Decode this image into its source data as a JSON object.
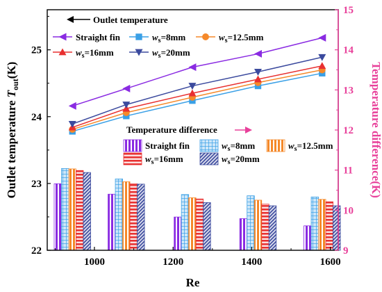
{
  "chart_data": {
    "type": "bar+line",
    "x_axis": {
      "label": "Re",
      "ticks": [
        "1000",
        "1200",
        "1400",
        "1600"
      ],
      "range": [
        880,
        1620
      ]
    },
    "y_left": {
      "label_main": "Outlet temperature ",
      "label_var": "T",
      "label_sub": "out",
      "label_unit": "(K)",
      "range": [
        22,
        25.6
      ],
      "ticks": [
        "22",
        "23",
        "24",
        "25"
      ]
    },
    "y_right": {
      "label": "Temperature difference(K)",
      "range": [
        9,
        15
      ],
      "ticks": [
        "9",
        "10",
        "11",
        "12",
        "13",
        "14",
        "15"
      ],
      "color": "#e8409a"
    },
    "line_group_label": "Outlet temperature",
    "bar_group_label": "Temperature difference",
    "x_values": [
      944,
      1081,
      1249,
      1416,
      1579
    ],
    "line_series": [
      {
        "name": "Straight fin",
        "name_prefix": "",
        "name_sub": "",
        "name_rest": "Straight fin",
        "color": "#8a2be2",
        "marker": "triangle-left",
        "values": [
          24.16,
          24.42,
          24.74,
          24.94,
          25.18
        ]
      },
      {
        "name": "ws=8mm",
        "name_prefix": "w",
        "name_sub": "s",
        "name_rest": "=8mm",
        "color": "#3aa0e6",
        "marker": "square",
        "values": [
          23.78,
          24.01,
          24.24,
          24.46,
          24.65
        ]
      },
      {
        "name": "ws=12.5mm",
        "name_prefix": "w",
        "name_sub": "s",
        "name_rest": "=12.5mm",
        "color": "#f5892a",
        "marker": "circle",
        "values": [
          23.81,
          24.06,
          24.29,
          24.51,
          24.7
        ]
      },
      {
        "name": "ws=16mm",
        "name_prefix": "w",
        "name_sub": "s",
        "name_rest": "=16mm",
        "color": "#e83030",
        "marker": "triangle-up",
        "values": [
          23.84,
          24.12,
          24.35,
          24.56,
          24.76
        ]
      },
      {
        "name": "ws=20mm",
        "name_prefix": "w",
        "name_sub": "s",
        "name_rest": "=20mm",
        "color": "#3b4a9e",
        "marker": "triangle-down",
        "values": [
          23.89,
          24.18,
          24.46,
          24.67,
          24.89
        ]
      }
    ],
    "bar_series": [
      {
        "name": "Straight fin",
        "name_prefix": "",
        "name_sub": "",
        "name_rest": "Straight fin",
        "color": "#8a2be2",
        "pattern": "vstripes",
        "values": [
          10.66,
          10.4,
          9.83,
          9.79,
          9.61
        ]
      },
      {
        "name": "ws=8mm",
        "name_prefix": "w",
        "name_sub": "s",
        "name_rest": "=8mm",
        "color": "#3aa0e6",
        "pattern": "grid",
        "values": [
          11.04,
          10.78,
          10.39,
          10.36,
          10.33
        ]
      },
      {
        "name": "ws=12.5mm",
        "name_prefix": "w",
        "name_sub": "s",
        "name_rest": "=12.5mm",
        "color": "#f5892a",
        "pattern": "vstripes",
        "values": [
          11.03,
          10.71,
          10.31,
          10.25,
          10.27
        ]
      },
      {
        "name": "ws=16mm",
        "name_prefix": "w",
        "name_sub": "s",
        "name_rest": "=16mm",
        "color": "#e83030",
        "pattern": "hstripes",
        "values": [
          10.99,
          10.66,
          10.28,
          10.15,
          10.21
        ]
      },
      {
        "name": "ws=20mm",
        "name_prefix": "w",
        "name_sub": "s",
        "name_rest": "=20mm",
        "color": "#3b4a9e",
        "pattern": "diag",
        "values": [
          10.94,
          10.65,
          10.19,
          10.11,
          10.11
        ]
      }
    ],
    "grid": false
  }
}
